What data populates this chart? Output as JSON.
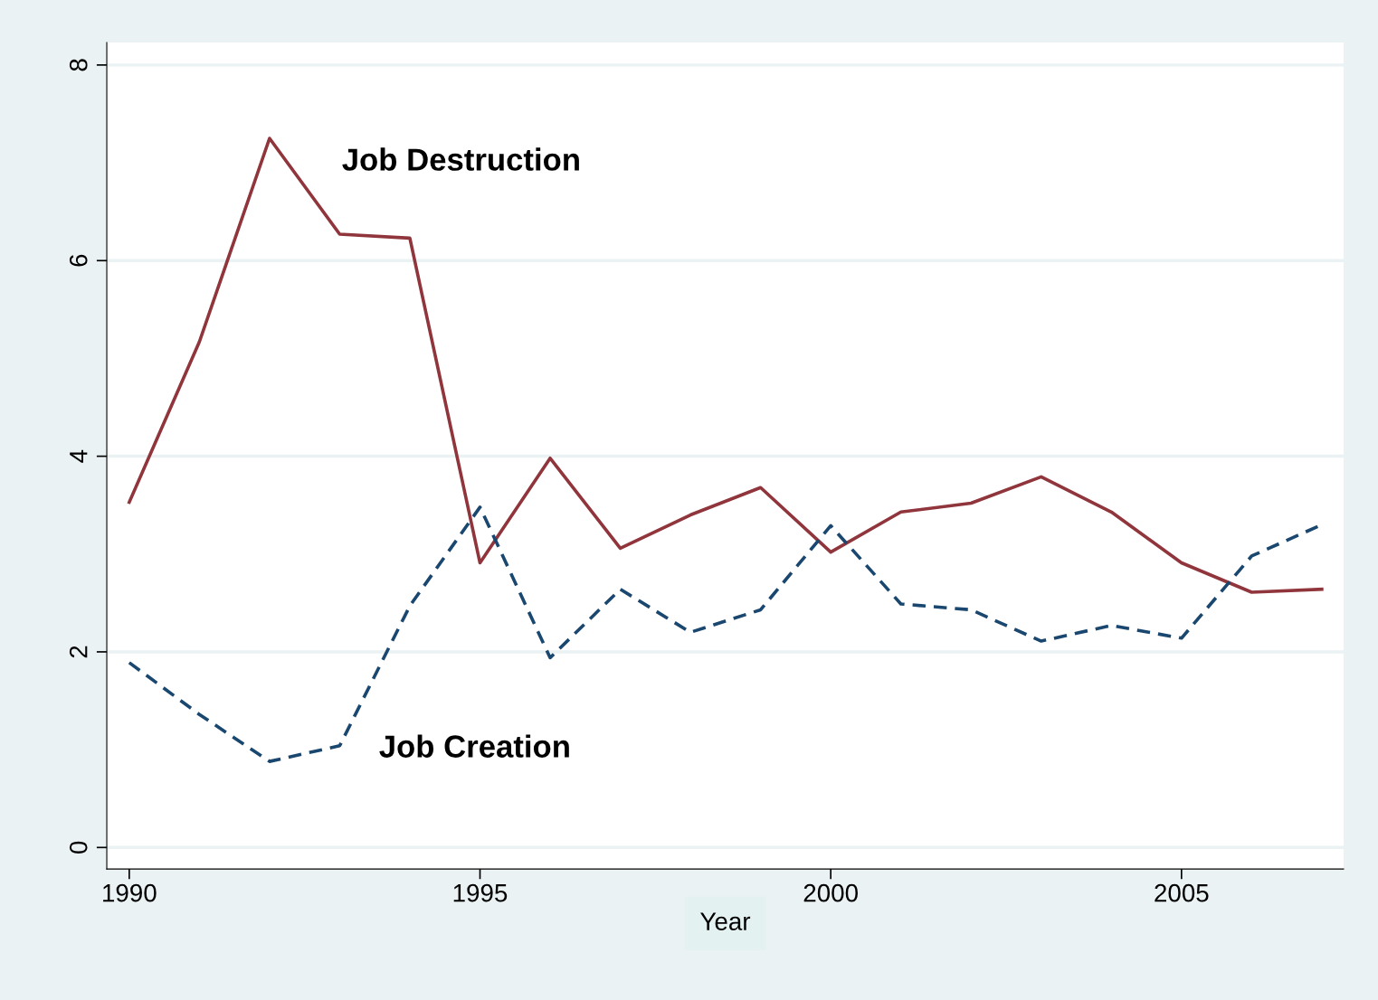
{
  "chart_data": {
    "type": "line",
    "xlabel": "Year",
    "x": [
      1990,
      1991,
      1992,
      1993,
      1994,
      1995,
      1996,
      1997,
      1998,
      1999,
      2000,
      2001,
      2002,
      2003,
      2004,
      2005,
      2006,
      2007
    ],
    "series": [
      {
        "name": "Job Destruction",
        "color": "#90353b",
        "line_style": "solid",
        "values": [
          3.53,
          5.17,
          7.25,
          6.27,
          6.23,
          2.91,
          3.98,
          3.06,
          3.4,
          3.68,
          3.02,
          3.43,
          3.52,
          3.79,
          3.43,
          2.91,
          2.61,
          2.64
        ]
      },
      {
        "name": "Job Creation",
        "color": "#1a476f",
        "line_style": "dashed",
        "values": [
          1.89,
          1.36,
          0.88,
          1.04,
          2.47,
          3.48,
          1.94,
          2.64,
          2.2,
          2.43,
          3.29,
          2.49,
          2.43,
          2.11,
          2.27,
          2.14,
          2.98,
          3.3
        ]
      }
    ],
    "xlim": [
      1989.68,
      2007.31
    ],
    "ylim": [
      -0.22,
      8.23
    ],
    "xticks": [
      1990,
      1995,
      2000,
      2005
    ],
    "yticks": [
      0,
      2,
      4,
      6,
      8
    ],
    "grid": "y",
    "legend": false,
    "marker": "none"
  }
}
